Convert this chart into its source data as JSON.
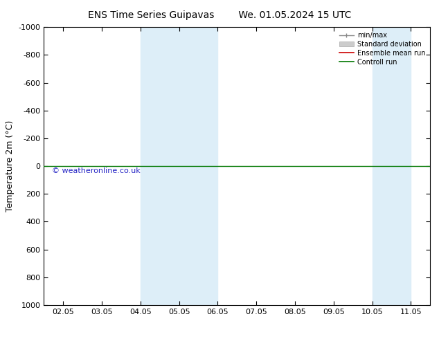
{
  "title_left": "ENS Time Series Guipavas",
  "title_right": "We. 01.05.2024 15 UTC",
  "ylabel": "Temperature 2m (°C)",
  "watermark": "© weatheronline.co.uk",
  "ylim_top": -1000,
  "ylim_bottom": 1000,
  "yticks": [
    -1000,
    -800,
    -600,
    -400,
    -200,
    0,
    200,
    400,
    600,
    800,
    1000
  ],
  "xtick_labels": [
    "02.05",
    "03.05",
    "04.05",
    "05.05",
    "06.05",
    "07.05",
    "08.05",
    "09.05",
    "10.05",
    "11.05"
  ],
  "xtick_positions": [
    0,
    1,
    2,
    3,
    4,
    5,
    6,
    7,
    8,
    9
  ],
  "shade_bands": [
    {
      "x_start": 2,
      "x_end": 3,
      "color": "#ddeef8"
    },
    {
      "x_start": 3,
      "x_end": 4,
      "color": "#ddeef8"
    },
    {
      "x_start": 8,
      "x_end": 9,
      "color": "#ddeef8"
    }
  ],
  "control_run_y": 0,
  "control_run_color": "#007700",
  "ensemble_mean_color": "#cc0000",
  "std_dev_color": "#cccccc",
  "minmax_color": "#888888",
  "background_color": "#ffffff",
  "legend_labels": [
    "min/max",
    "Standard deviation",
    "Ensemble mean run",
    "Controll run"
  ],
  "legend_colors": [
    "#888888",
    "#cccccc",
    "#cc0000",
    "#007700"
  ],
  "title_fontsize": 10,
  "tick_fontsize": 8,
  "ylabel_fontsize": 9
}
